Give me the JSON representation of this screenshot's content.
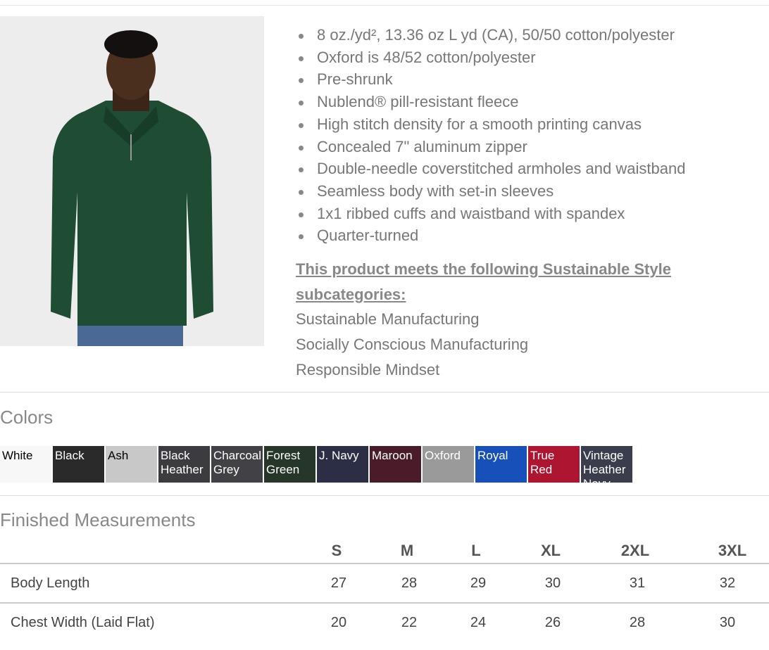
{
  "features": [
    "8 oz./yd², 13.36 oz L yd (CA), 50/50 cotton/polyester",
    "Oxford is 48/52 cotton/polyester",
    "Pre-shrunk",
    "Nublend® pill-resistant fleece",
    "High stitch density for a smooth printing canvas",
    "Concealed 7\" aluminum zipper",
    "Double-needle coverstitched armholes and waistband",
    "Seamless body with set-in sleeves",
    "1x1 ribbed cuffs and waistband with spandex",
    "Quarter-turned"
  ],
  "sustainable": {
    "title": "This product meets the following Sustainable Style subcategories:",
    "items": [
      "Sustainable Manufacturing",
      "Socially Conscious Manufacturing",
      "Responsible Mindset"
    ]
  },
  "colors_title": "Colors",
  "colors": [
    {
      "name": "White",
      "hex": "#f7f7f7",
      "text": "#000"
    },
    {
      "name": "Black",
      "hex": "#2a2a2a",
      "text": "#fff"
    },
    {
      "name": "Ash",
      "hex": "#c9c8c8",
      "text": "#000"
    },
    {
      "name": "Black Heather",
      "hex": "#3c3c40",
      "text": "#fff"
    },
    {
      "name": "Charcoal Grey",
      "hex": "#424246",
      "text": "#fff"
    },
    {
      "name": "Forest Green",
      "hex": "#263628",
      "text": "#fff"
    },
    {
      "name": "J. Navy",
      "hex": "#2b2e45",
      "text": "#fff"
    },
    {
      "name": "Maroon",
      "hex": "#4a1c2a",
      "text": "#fff"
    },
    {
      "name": "Oxford",
      "hex": "#9b9a9a",
      "text": "#fff"
    },
    {
      "name": "Royal",
      "hex": "#1650b8",
      "text": "#fff"
    },
    {
      "name": "True Red",
      "hex": "#ad1530",
      "text": "#fff"
    },
    {
      "name": "Vintage Heather Navy",
      "hex": "#3a3d4c",
      "text": "#fff"
    }
  ],
  "measurements": {
    "title": "Finished Measurements",
    "sizes": [
      "S",
      "M",
      "L",
      "XL",
      "2XL",
      "3XL"
    ],
    "rows": [
      {
        "label": "Body Length",
        "values": [
          "27",
          "28",
          "29",
          "30",
          "31",
          "32"
        ]
      },
      {
        "label": "Chest Width (Laid Flat)",
        "values": [
          "20",
          "22",
          "24",
          "26",
          "28",
          "30"
        ]
      }
    ]
  }
}
